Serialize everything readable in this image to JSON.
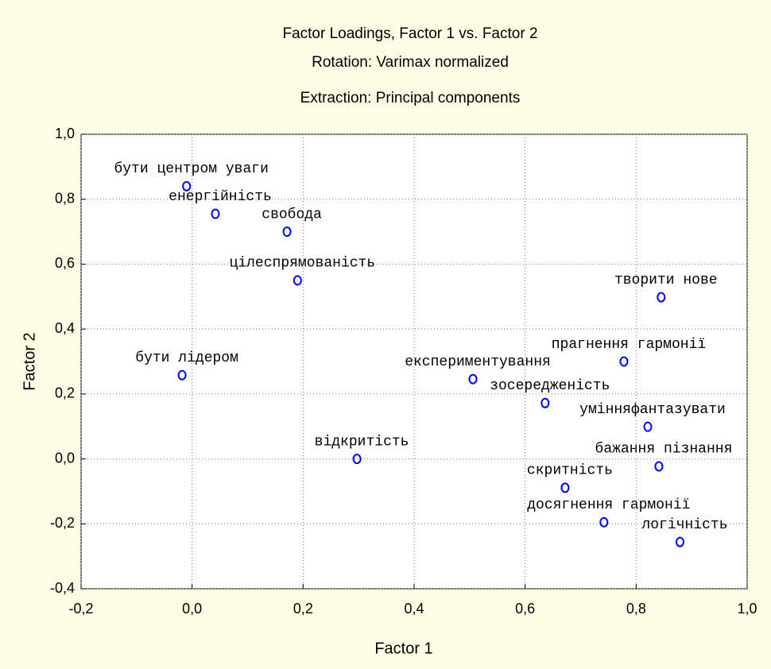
{
  "chart_data": {
    "type": "scatter",
    "title": "Factor Loadings, Factor 1 vs. Factor 2",
    "subtitle": [
      "Rotation: Varimax normalized",
      "Extraction: Principal components"
    ],
    "xlabel": "Factor 1",
    "ylabel": "Factor 2",
    "labels": [
      "бути центром уваги",
      "енергійність",
      "свобода",
      "цілеспрямованість",
      "творити нове",
      "прагнення гармонії",
      "бути лідером",
      "експериментування",
      "зосередженість",
      "умінняфантазувати",
      "бажання пізнання",
      "відкритість",
      "скритність",
      "досягнення гармонії",
      "логічність"
    ],
    "x": [
      -0.01,
      0.042,
      0.171,
      0.19,
      0.845,
      0.778,
      -0.018,
      0.506,
      0.636,
      0.821,
      0.841,
      0.297,
      0.672,
      0.742,
      0.879
    ],
    "values": [
      0.84,
      0.755,
      0.7,
      0.55,
      0.498,
      0.3,
      0.258,
      0.246,
      0.172,
      0.099,
      -0.023,
      0.0,
      -0.089,
      -0.195,
      -0.256
    ],
    "color": "#0000ff",
    "xlim": [
      -0.2,
      1.0
    ],
    "ylim": [
      -0.4,
      1.0
    ],
    "xticks": [
      {
        "value": -0.2,
        "label": "-0,2"
      },
      {
        "value": 0,
        "label": "0,0"
      },
      {
        "value": 0.2,
        "label": "0,2"
      },
      {
        "value": 0.4,
        "label": "0,4"
      },
      {
        "value": 0.6,
        "label": "0,6"
      },
      {
        "value": 0.8,
        "label": "0,8"
      },
      {
        "value": 1.0,
        "label": "1,0"
      }
    ],
    "yticks": [
      {
        "value": -0.4,
        "label": "-0,4"
      },
      {
        "value": -0.2,
        "label": "-0,2"
      },
      {
        "value": 0,
        "label": "0,0"
      },
      {
        "value": 0.2,
        "label": "0,2"
      },
      {
        "value": 0.4,
        "label": "0,4"
      },
      {
        "value": 0.6,
        "label": "0,6"
      },
      {
        "value": 0.8,
        "label": "0,8"
      },
      {
        "value": 1.0,
        "label": "1,0"
      }
    ],
    "grid": true
  }
}
